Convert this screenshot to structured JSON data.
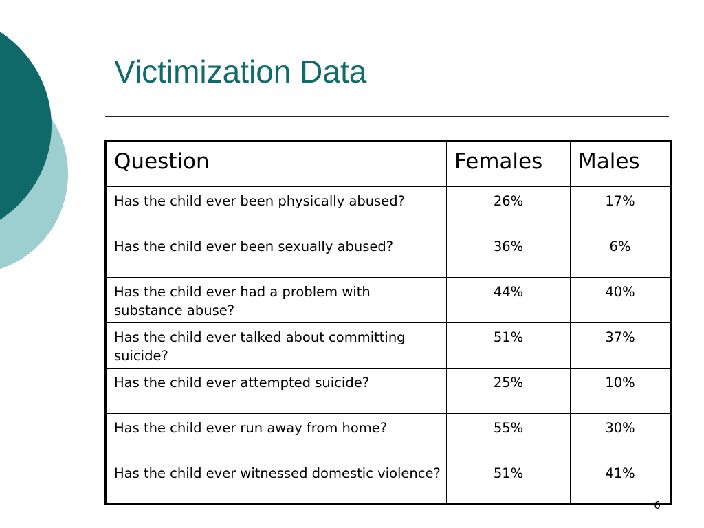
{
  "slide": {
    "title": "Victimization Data",
    "page_number": "6",
    "colors": {
      "title": "#0f6c6b",
      "deco_dark": "#0e6968",
      "deco_light": "#9ecfd0"
    }
  },
  "table": {
    "headers": {
      "question": "Question",
      "females": "Females",
      "males": "Males"
    },
    "rows": [
      {
        "question": "Has the child ever been physically abused?",
        "females": "26%",
        "males": "17%"
      },
      {
        "question": "Has the child ever been sexually abused?",
        "females": "36%",
        "males": "6%"
      },
      {
        "question": "Has the child ever had a problem with substance abuse?",
        "females": "44%",
        "males": "40%"
      },
      {
        "question": "Has the child ever talked about committing suicide?",
        "females": "51%",
        "males": "37%"
      },
      {
        "question": "Has the child ever attempted suicide?",
        "females": "25%",
        "males": "10%"
      },
      {
        "question": "Has the child ever run away from home?",
        "females": "55%",
        "males": "30%"
      },
      {
        "question": "Has the child ever witnessed domestic violence?",
        "females": "51%",
        "males": "41%"
      }
    ]
  }
}
